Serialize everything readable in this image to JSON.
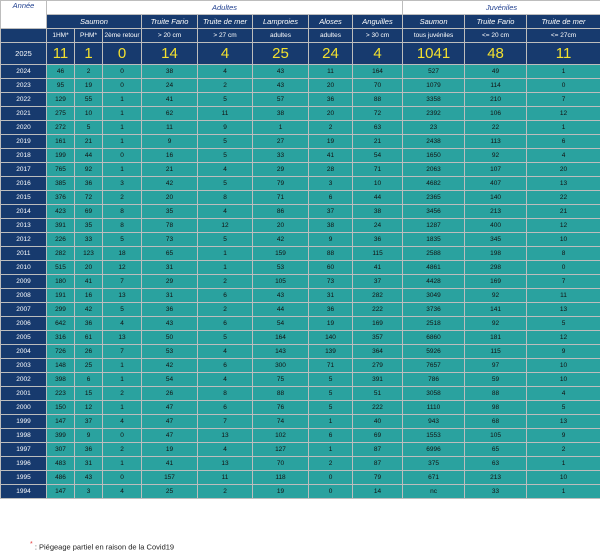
{
  "header": {
    "annee": "Année",
    "adultes": "Adultes",
    "juveniles": "Juvéniles",
    "groups": [
      "Saumon",
      "Truite Fario",
      "Truite de mer",
      "Lamproies",
      "Aloses",
      "Anguilles",
      "Saumon",
      "Truite Fario",
      "Truite de mer"
    ],
    "subs": [
      "1HM*",
      "PHM*",
      "2ème retour",
      "> 20 cm",
      "> 27 cm",
      "adultes",
      "adultes",
      "> 30 cm",
      "tous juvéniles",
      "<= 20 cm",
      "<= 27cm"
    ]
  },
  "current": {
    "year": "2025",
    "values": [
      "11",
      "1",
      "0",
      "14",
      "4",
      "25",
      "24",
      "4",
      "1041",
      "48",
      "11"
    ]
  },
  "rows": [
    {
      "year": "2024",
      "star": "",
      "values": [
        "46",
        "2",
        "0",
        "38",
        "4",
        "43",
        "11",
        "164",
        "527",
        "49",
        "1"
      ]
    },
    {
      "year": "2023",
      "star": "",
      "values": [
        "95",
        "19",
        "0",
        "24",
        "2",
        "43",
        "20",
        "70",
        "1079",
        "114",
        "0"
      ]
    },
    {
      "year": "2022",
      "star": "",
      "values": [
        "129",
        "55",
        "1",
        "41",
        "5",
        "57",
        "36",
        "88",
        "3358",
        "210",
        "7"
      ]
    },
    {
      "year": "2021",
      "star": "",
      "values": [
        "275",
        "10",
        "1",
        "62",
        "11",
        "38",
        "20",
        "72",
        "2392",
        "106",
        "12"
      ]
    },
    {
      "year": "2020",
      "star": "*",
      "values": [
        "272",
        "5",
        "1",
        "11",
        "9",
        "1",
        "2",
        "63",
        "23",
        "22",
        "1"
      ]
    },
    {
      "year": "2019",
      "star": "",
      "values": [
        "161",
        "21",
        "1",
        "9",
        "5",
        "27",
        "19",
        "21",
        "2438",
        "113",
        "6"
      ]
    },
    {
      "year": "2018",
      "star": "",
      "values": [
        "199",
        "44",
        "0",
        "16",
        "5",
        "33",
        "41",
        "54",
        "1650",
        "92",
        "4"
      ]
    },
    {
      "year": "2017",
      "star": "",
      "values": [
        "765",
        "92",
        "1",
        "21",
        "4",
        "29",
        "28",
        "71",
        "2063",
        "107",
        "20"
      ]
    },
    {
      "year": "2016",
      "star": "",
      "values": [
        "385",
        "36",
        "3",
        "42",
        "5",
        "79",
        "3",
        "10",
        "4682",
        "407",
        "13"
      ]
    },
    {
      "year": "2015",
      "star": "",
      "values": [
        "376",
        "72",
        "2",
        "20",
        "8",
        "71",
        "6",
        "44",
        "2365",
        "140",
        "22"
      ]
    },
    {
      "year": "2014",
      "star": "",
      "values": [
        "423",
        "69",
        "8",
        "35",
        "4",
        "86",
        "37",
        "38",
        "3456",
        "213",
        "21"
      ]
    },
    {
      "year": "2013",
      "star": "",
      "values": [
        "391",
        "35",
        "8",
        "78",
        "12",
        "20",
        "38",
        "24",
        "1287",
        "400",
        "12"
      ]
    },
    {
      "year": "2012",
      "star": "",
      "values": [
        "226",
        "33",
        "5",
        "73",
        "5",
        "42",
        "9",
        "36",
        "1835",
        "345",
        "10"
      ]
    },
    {
      "year": "2011",
      "star": "",
      "values": [
        "282",
        "123",
        "18",
        "65",
        "1",
        "159",
        "88",
        "115",
        "2588",
        "198",
        "8"
      ]
    },
    {
      "year": "2010",
      "star": "",
      "values": [
        "515",
        "20",
        "12",
        "31",
        "1",
        "53",
        "60",
        "41",
        "4861",
        "298",
        "0"
      ]
    },
    {
      "year": "2009",
      "star": "",
      "values": [
        "180",
        "41",
        "7",
        "29",
        "2",
        "105",
        "73",
        "37",
        "4428",
        "169",
        "7"
      ]
    },
    {
      "year": "2008",
      "star": "",
      "values": [
        "191",
        "16",
        "13",
        "31",
        "6",
        "43",
        "31",
        "282",
        "3049",
        "92",
        "11"
      ]
    },
    {
      "year": "2007",
      "star": "",
      "values": [
        "299",
        "42",
        "5",
        "36",
        "2",
        "44",
        "36",
        "222",
        "3736",
        "141",
        "13"
      ]
    },
    {
      "year": "2006",
      "star": "",
      "values": [
        "642",
        "36",
        "4",
        "43",
        "6",
        "54",
        "19",
        "169",
        "2518",
        "92",
        "5"
      ]
    },
    {
      "year": "2005",
      "star": "",
      "values": [
        "316",
        "61",
        "13",
        "50",
        "5",
        "164",
        "140",
        "357",
        "6860",
        "181",
        "12"
      ]
    },
    {
      "year": "2004",
      "star": "",
      "values": [
        "726",
        "26",
        "7",
        "53",
        "4",
        "143",
        "139",
        "364",
        "5926",
        "115",
        "9"
      ]
    },
    {
      "year": "2003",
      "star": "",
      "values": [
        "148",
        "25",
        "1",
        "42",
        "6",
        "300",
        "71",
        "279",
        "7657",
        "97",
        "10"
      ]
    },
    {
      "year": "2002",
      "star": "",
      "values": [
        "398",
        "6",
        "1",
        "54",
        "4",
        "75",
        "5",
        "391",
        "786",
        "59",
        "10"
      ]
    },
    {
      "year": "2001",
      "star": "",
      "values": [
        "223",
        "15",
        "2",
        "26",
        "8",
        "88",
        "5",
        "51",
        "3058",
        "88",
        "4"
      ]
    },
    {
      "year": "2000",
      "star": "",
      "values": [
        "150",
        "12",
        "1",
        "47",
        "6",
        "76",
        "5",
        "222",
        "1110",
        "98",
        "5"
      ]
    },
    {
      "year": "1999",
      "star": "",
      "values": [
        "147",
        "37",
        "4",
        "47",
        "7",
        "74",
        "1",
        "40",
        "943",
        "68",
        "13"
      ]
    },
    {
      "year": "1998",
      "star": "",
      "values": [
        "399",
        "9",
        "0",
        "47",
        "13",
        "102",
        "6",
        "69",
        "1553",
        "105",
        "9"
      ]
    },
    {
      "year": "1997",
      "star": "",
      "values": [
        "307",
        "36",
        "2",
        "19",
        "4",
        "127",
        "1",
        "87",
        "6996",
        "65",
        "2"
      ]
    },
    {
      "year": "1996",
      "star": "",
      "values": [
        "483",
        "31",
        "1",
        "41",
        "13",
        "70",
        "2",
        "87",
        "375",
        "63",
        "1"
      ]
    },
    {
      "year": "1995",
      "star": "",
      "values": [
        "486",
        "43",
        "0",
        "157",
        "11",
        "118",
        "0",
        "79",
        "671",
        "213",
        "10"
      ]
    },
    {
      "year": "1994",
      "star": "",
      "values": [
        "147",
        "3",
        "4",
        "25",
        "2",
        "19",
        "0",
        "14",
        "nc",
        "33",
        "1"
      ]
    }
  ],
  "footnote": {
    "mark": "*",
    "text": " : Piégeage partiel en raison de la Covid19"
  },
  "colors": {
    "navy": "#173a6e",
    "teal": "#2aa29f",
    "highlight": "#f4e12e",
    "accent_red": "#e53b3b"
  }
}
